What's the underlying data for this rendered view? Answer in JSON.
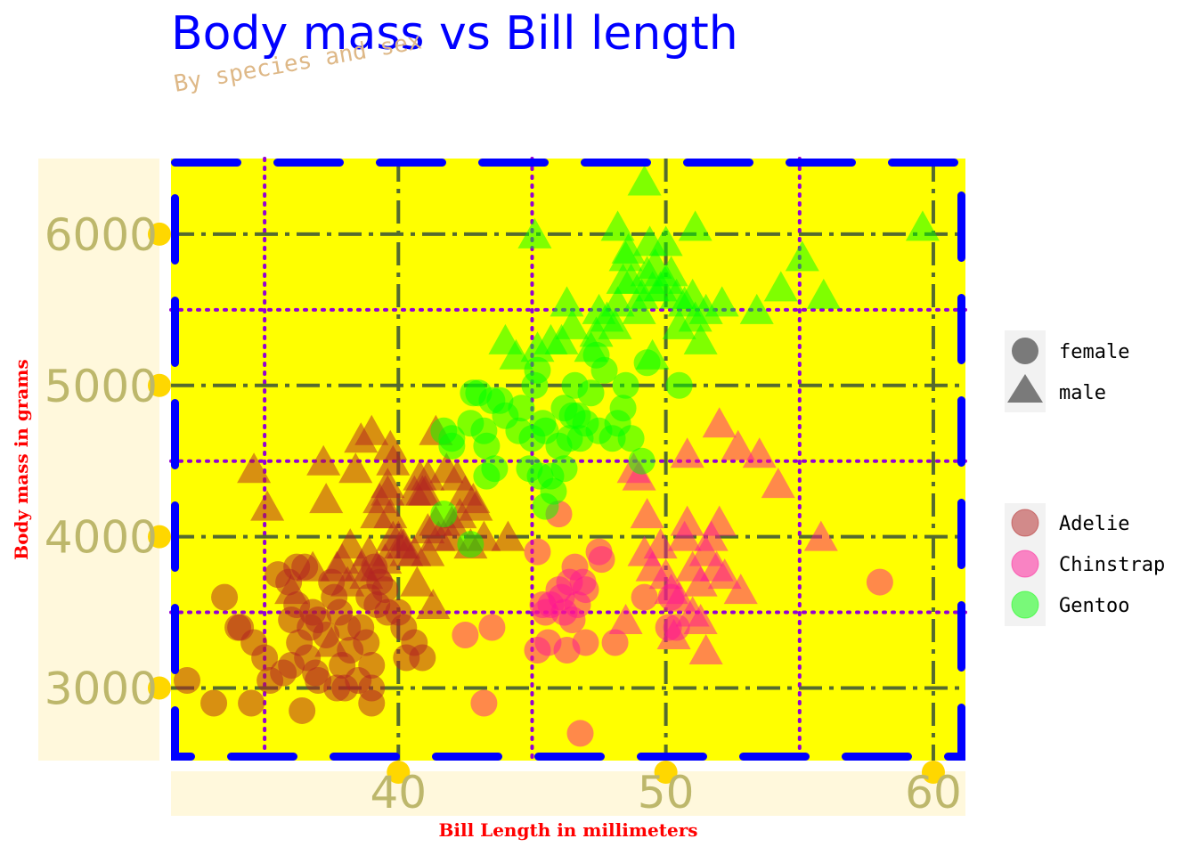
{
  "chart_data": {
    "type": "scatter",
    "title": "Body mass vs Bill length",
    "subtitle": "By species and sex",
    "xlabel": "Bill Length in millimeters",
    "ylabel": "Body mass in grams",
    "xlim": [
      31.5,
      61.2
    ],
    "ylim": [
      2520,
      6500
    ],
    "x_ticks": [
      40,
      50,
      60
    ],
    "y_ticks": [
      3000,
      4000,
      5000,
      6000
    ],
    "x_minor": [
      35,
      45,
      55
    ],
    "y_minor": [
      3500,
      4500,
      5500
    ],
    "grid": true,
    "legend_shape": {
      "entries": [
        {
          "label": "female",
          "shape": "circle"
        },
        {
          "label": "male",
          "shape": "triangle"
        }
      ]
    },
    "legend_color": {
      "entries": [
        {
          "label": "Adelie",
          "color": "#b22222"
        },
        {
          "label": "Chinstrap",
          "color": "#ff1493"
        },
        {
          "label": "Gentoo",
          "color": "#00ff00"
        }
      ]
    },
    "colors": {
      "Adelie": "#b22222",
      "Chinstrap": "#ff1493",
      "Gentoo": "#00ff00",
      "panel_background": "#ffff00",
      "panel_border": "#0000ff",
      "major_grid": "#556b2f",
      "minor_grid": "#9400d3",
      "axis_band": "#fff8dc",
      "tick_dot": "#ffd700",
      "tick_text": "#bdb76b",
      "title": "#0000ff",
      "subtitle": "#deb887",
      "axis_title": "#ff0000"
    },
    "series": [
      {
        "species": "Adelie",
        "sex": "female",
        "points": [
          [
            33.5,
            3600
          ],
          [
            32.1,
            3050
          ],
          [
            33.1,
            2900
          ],
          [
            34.5,
            2900
          ],
          [
            34.0,
            3400
          ],
          [
            34.6,
            3300
          ],
          [
            35.0,
            3200
          ],
          [
            35.2,
            3050
          ],
          [
            35.5,
            3750
          ],
          [
            35.9,
            3700
          ],
          [
            36.0,
            3450
          ],
          [
            36.2,
            3550
          ],
          [
            36.3,
            3300
          ],
          [
            36.0,
            3150
          ],
          [
            36.5,
            3800
          ],
          [
            36.6,
            3200
          ],
          [
            36.7,
            3400
          ],
          [
            36.8,
            3500
          ],
          [
            36.9,
            3100
          ],
          [
            37.0,
            3050
          ],
          [
            37.0,
            3450
          ],
          [
            37.3,
            3350
          ],
          [
            37.5,
            3700
          ],
          [
            37.6,
            3600
          ],
          [
            37.8,
            3500
          ],
          [
            37.9,
            3150
          ],
          [
            38.0,
            3000
          ],
          [
            38.1,
            3400
          ],
          [
            38.2,
            3250
          ],
          [
            38.5,
            3050
          ],
          [
            38.6,
            3400
          ],
          [
            38.8,
            3300
          ],
          [
            38.9,
            3600
          ],
          [
            39.0,
            3150
          ],
          [
            39.0,
            2900
          ],
          [
            39.1,
            3800
          ],
          [
            39.2,
            3550
          ],
          [
            39.3,
            3700
          ],
          [
            39.5,
            3650
          ],
          [
            39.6,
            3500
          ],
          [
            39.0,
            3000
          ],
          [
            40.0,
            3500
          ],
          [
            40.2,
            3400
          ],
          [
            40.3,
            3200
          ],
          [
            40.6,
            3300
          ],
          [
            40.9,
            3200
          ],
          [
            36.2,
            3800
          ],
          [
            36.4,
            2850
          ],
          [
            37.7,
            3000
          ],
          [
            35.7,
            3100
          ],
          [
            34.1,
            3400
          ]
        ]
      },
      {
        "species": "Adelie",
        "sex": "male",
        "points": [
          [
            34.6,
            4450
          ],
          [
            35.1,
            4200
          ],
          [
            37.2,
            4500
          ],
          [
            37.3,
            4250
          ],
          [
            38.6,
            4650
          ],
          [
            39.0,
            4700
          ],
          [
            39.7,
            4600
          ],
          [
            39.6,
            4300
          ],
          [
            39.2,
            4150
          ],
          [
            40.0,
            4000
          ],
          [
            40.6,
            4300
          ],
          [
            40.8,
            4400
          ],
          [
            41.0,
            4300
          ],
          [
            41.4,
            4700
          ],
          [
            41.8,
            4450
          ],
          [
            42.2,
            4400
          ],
          [
            42.5,
            4300
          ],
          [
            42.0,
            4000
          ],
          [
            41.1,
            3900
          ],
          [
            41.4,
            4100
          ],
          [
            40.3,
            3900
          ],
          [
            39.8,
            4000
          ],
          [
            38.9,
            3900
          ],
          [
            38.2,
            3950
          ],
          [
            37.9,
            3850
          ],
          [
            37.7,
            3800
          ],
          [
            36.8,
            3800
          ],
          [
            36.0,
            3650
          ],
          [
            38.1,
            3700
          ],
          [
            38.8,
            3750
          ],
          [
            39.2,
            3800
          ],
          [
            39.5,
            3850
          ],
          [
            40.1,
            3950
          ],
          [
            40.6,
            3900
          ],
          [
            41.1,
            4050
          ],
          [
            41.5,
            4000
          ],
          [
            42.0,
            4100
          ],
          [
            42.3,
            4150
          ],
          [
            42.8,
            4250
          ],
          [
            43.2,
            4000
          ],
          [
            44.1,
            4000
          ],
          [
            38.4,
            4450
          ],
          [
            39.3,
            4250
          ],
          [
            40.7,
            3700
          ],
          [
            41.3,
            3550
          ],
          [
            37.5,
            3300
          ],
          [
            38.6,
            3800
          ],
          [
            40.2,
            3950
          ],
          [
            39.7,
            4150
          ],
          [
            41.1,
            4400
          ],
          [
            42.7,
            3950
          ],
          [
            40.9,
            4300
          ],
          [
            39.6,
            4350
          ],
          [
            39.8,
            4500
          ],
          [
            42.9,
            4200
          ]
        ]
      },
      {
        "species": "Chinstrap",
        "sex": "female",
        "points": [
          [
            45.2,
            3900
          ],
          [
            45.5,
            3500
          ],
          [
            45.7,
            3550
          ],
          [
            46.0,
            3650
          ],
          [
            46.1,
            3600
          ],
          [
            46.4,
            3700
          ],
          [
            46.6,
            3800
          ],
          [
            46.9,
            3700
          ],
          [
            47.0,
            3650
          ],
          [
            46.2,
            3500
          ],
          [
            46.5,
            3450
          ],
          [
            45.6,
            3300
          ],
          [
            45.2,
            3250
          ],
          [
            46.3,
            3250
          ],
          [
            47.0,
            3300
          ],
          [
            47.5,
            3900
          ],
          [
            47.6,
            3850
          ],
          [
            48.1,
            3300
          ],
          [
            49.2,
            3600
          ],
          [
            50.1,
            3400
          ],
          [
            50.4,
            3400
          ],
          [
            42.5,
            3350
          ],
          [
            43.5,
            3400
          ],
          [
            43.2,
            2900
          ],
          [
            45.4,
            3550
          ],
          [
            46.7,
            3550
          ],
          [
            46.8,
            2700
          ],
          [
            50.2,
            3600
          ],
          [
            58.0,
            3700
          ],
          [
            46.0,
            4150
          ]
        ]
      },
      {
        "species": "Chinstrap",
        "sex": "male",
        "points": [
          [
            49.0,
            4400
          ],
          [
            49.2,
            3900
          ],
          [
            49.5,
            3800
          ],
          [
            49.8,
            3950
          ],
          [
            50.0,
            3750
          ],
          [
            50.2,
            3650
          ],
          [
            50.5,
            3600
          ],
          [
            50.7,
            4000
          ],
          [
            50.8,
            4100
          ],
          [
            51.0,
            3800
          ],
          [
            51.3,
            3700
          ],
          [
            51.5,
            3900
          ],
          [
            51.7,
            4000
          ],
          [
            51.9,
            3800
          ],
          [
            52.0,
            4100
          ],
          [
            52.2,
            3750
          ],
          [
            52.8,
            3650
          ],
          [
            51.3,
            3450
          ],
          [
            51.5,
            3250
          ],
          [
            50.3,
            3350
          ],
          [
            48.5,
            3450
          ],
          [
            49.3,
            4150
          ],
          [
            52.0,
            4750
          ],
          [
            52.7,
            4600
          ],
          [
            53.5,
            4550
          ],
          [
            54.2,
            4350
          ],
          [
            55.8,
            4000
          ],
          [
            50.8,
            4550
          ],
          [
            48.8,
            4450
          ],
          [
            51.0,
            3500
          ]
        ]
      },
      {
        "species": "Gentoo",
        "sex": "female",
        "points": [
          [
            41.7,
            4700
          ],
          [
            42.0,
            4600
          ],
          [
            42.7,
            4750
          ],
          [
            43.2,
            4700
          ],
          [
            43.3,
            4600
          ],
          [
            43.5,
            4900
          ],
          [
            43.6,
            4450
          ],
          [
            44.0,
            4800
          ],
          [
            44.5,
            4700
          ],
          [
            45.0,
            4650
          ],
          [
            45.1,
            5000
          ],
          [
            45.2,
            5100
          ],
          [
            45.4,
            4750
          ],
          [
            45.5,
            4200
          ],
          [
            45.7,
            4400
          ],
          [
            46.0,
            4600
          ],
          [
            46.2,
            4450
          ],
          [
            46.4,
            4650
          ],
          [
            46.5,
            4800
          ],
          [
            46.6,
            5000
          ],
          [
            46.8,
            4650
          ],
          [
            47.0,
            4750
          ],
          [
            47.2,
            4950
          ],
          [
            47.5,
            4700
          ],
          [
            47.7,
            5100
          ],
          [
            48.0,
            4650
          ],
          [
            48.2,
            4750
          ],
          [
            48.4,
            4850
          ],
          [
            48.7,
            4650
          ],
          [
            49.1,
            4500
          ],
          [
            49.3,
            5150
          ],
          [
            45.3,
            4400
          ],
          [
            44.9,
            4450
          ],
          [
            43.3,
            4400
          ],
          [
            42.8,
            4950
          ],
          [
            43.0,
            4950
          ],
          [
            43.8,
            4900
          ],
          [
            44.6,
            4850
          ],
          [
            46.2,
            4850
          ],
          [
            45.8,
            4300
          ],
          [
            41.7,
            4150
          ],
          [
            42.7,
            3950
          ],
          [
            42.0,
            4650
          ],
          [
            50.5,
            5000
          ],
          [
            47.4,
            5200
          ],
          [
            48.5,
            5000
          ],
          [
            46.7,
            4800
          ],
          [
            45.5,
            4700
          ]
        ]
      },
      {
        "species": "Gentoo",
        "sex": "male",
        "points": [
          [
            44.4,
            5200
          ],
          [
            45.2,
            5250
          ],
          [
            45.1,
            6000
          ],
          [
            45.7,
            5300
          ],
          [
            46.1,
            5300
          ],
          [
            46.3,
            5550
          ],
          [
            47.5,
            5500
          ],
          [
            47.8,
            5450
          ],
          [
            48.2,
            5550
          ],
          [
            48.4,
            5700
          ],
          [
            48.5,
            5850
          ],
          [
            48.7,
            5700
          ],
          [
            49.0,
            5500
          ],
          [
            49.1,
            5600
          ],
          [
            49.3,
            5750
          ],
          [
            49.5,
            5650
          ],
          [
            49.6,
            5800
          ],
          [
            49.8,
            5650
          ],
          [
            50.0,
            5700
          ],
          [
            50.2,
            5750
          ],
          [
            50.4,
            5600
          ],
          [
            50.7,
            5550
          ],
          [
            51.0,
            5600
          ],
          [
            51.1,
            5450
          ],
          [
            51.5,
            5500
          ],
          [
            52.1,
            5550
          ],
          [
            53.4,
            5500
          ],
          [
            54.3,
            5650
          ],
          [
            55.1,
            5850
          ],
          [
            55.9,
            5600
          ],
          [
            59.6,
            6050
          ],
          [
            49.2,
            6350
          ],
          [
            51.1,
            6050
          ],
          [
            48.6,
            5900
          ],
          [
            49.4,
            5950
          ],
          [
            47.4,
            5350
          ],
          [
            47.2,
            5250
          ],
          [
            48.1,
            5400
          ],
          [
            49.5,
            5200
          ],
          [
            50.5,
            5400
          ],
          [
            51.3,
            5300
          ],
          [
            44.0,
            5300
          ],
          [
            46.5,
            5400
          ],
          [
            48.2,
            6050
          ],
          [
            50.0,
            5950
          ]
        ]
      }
    ]
  }
}
